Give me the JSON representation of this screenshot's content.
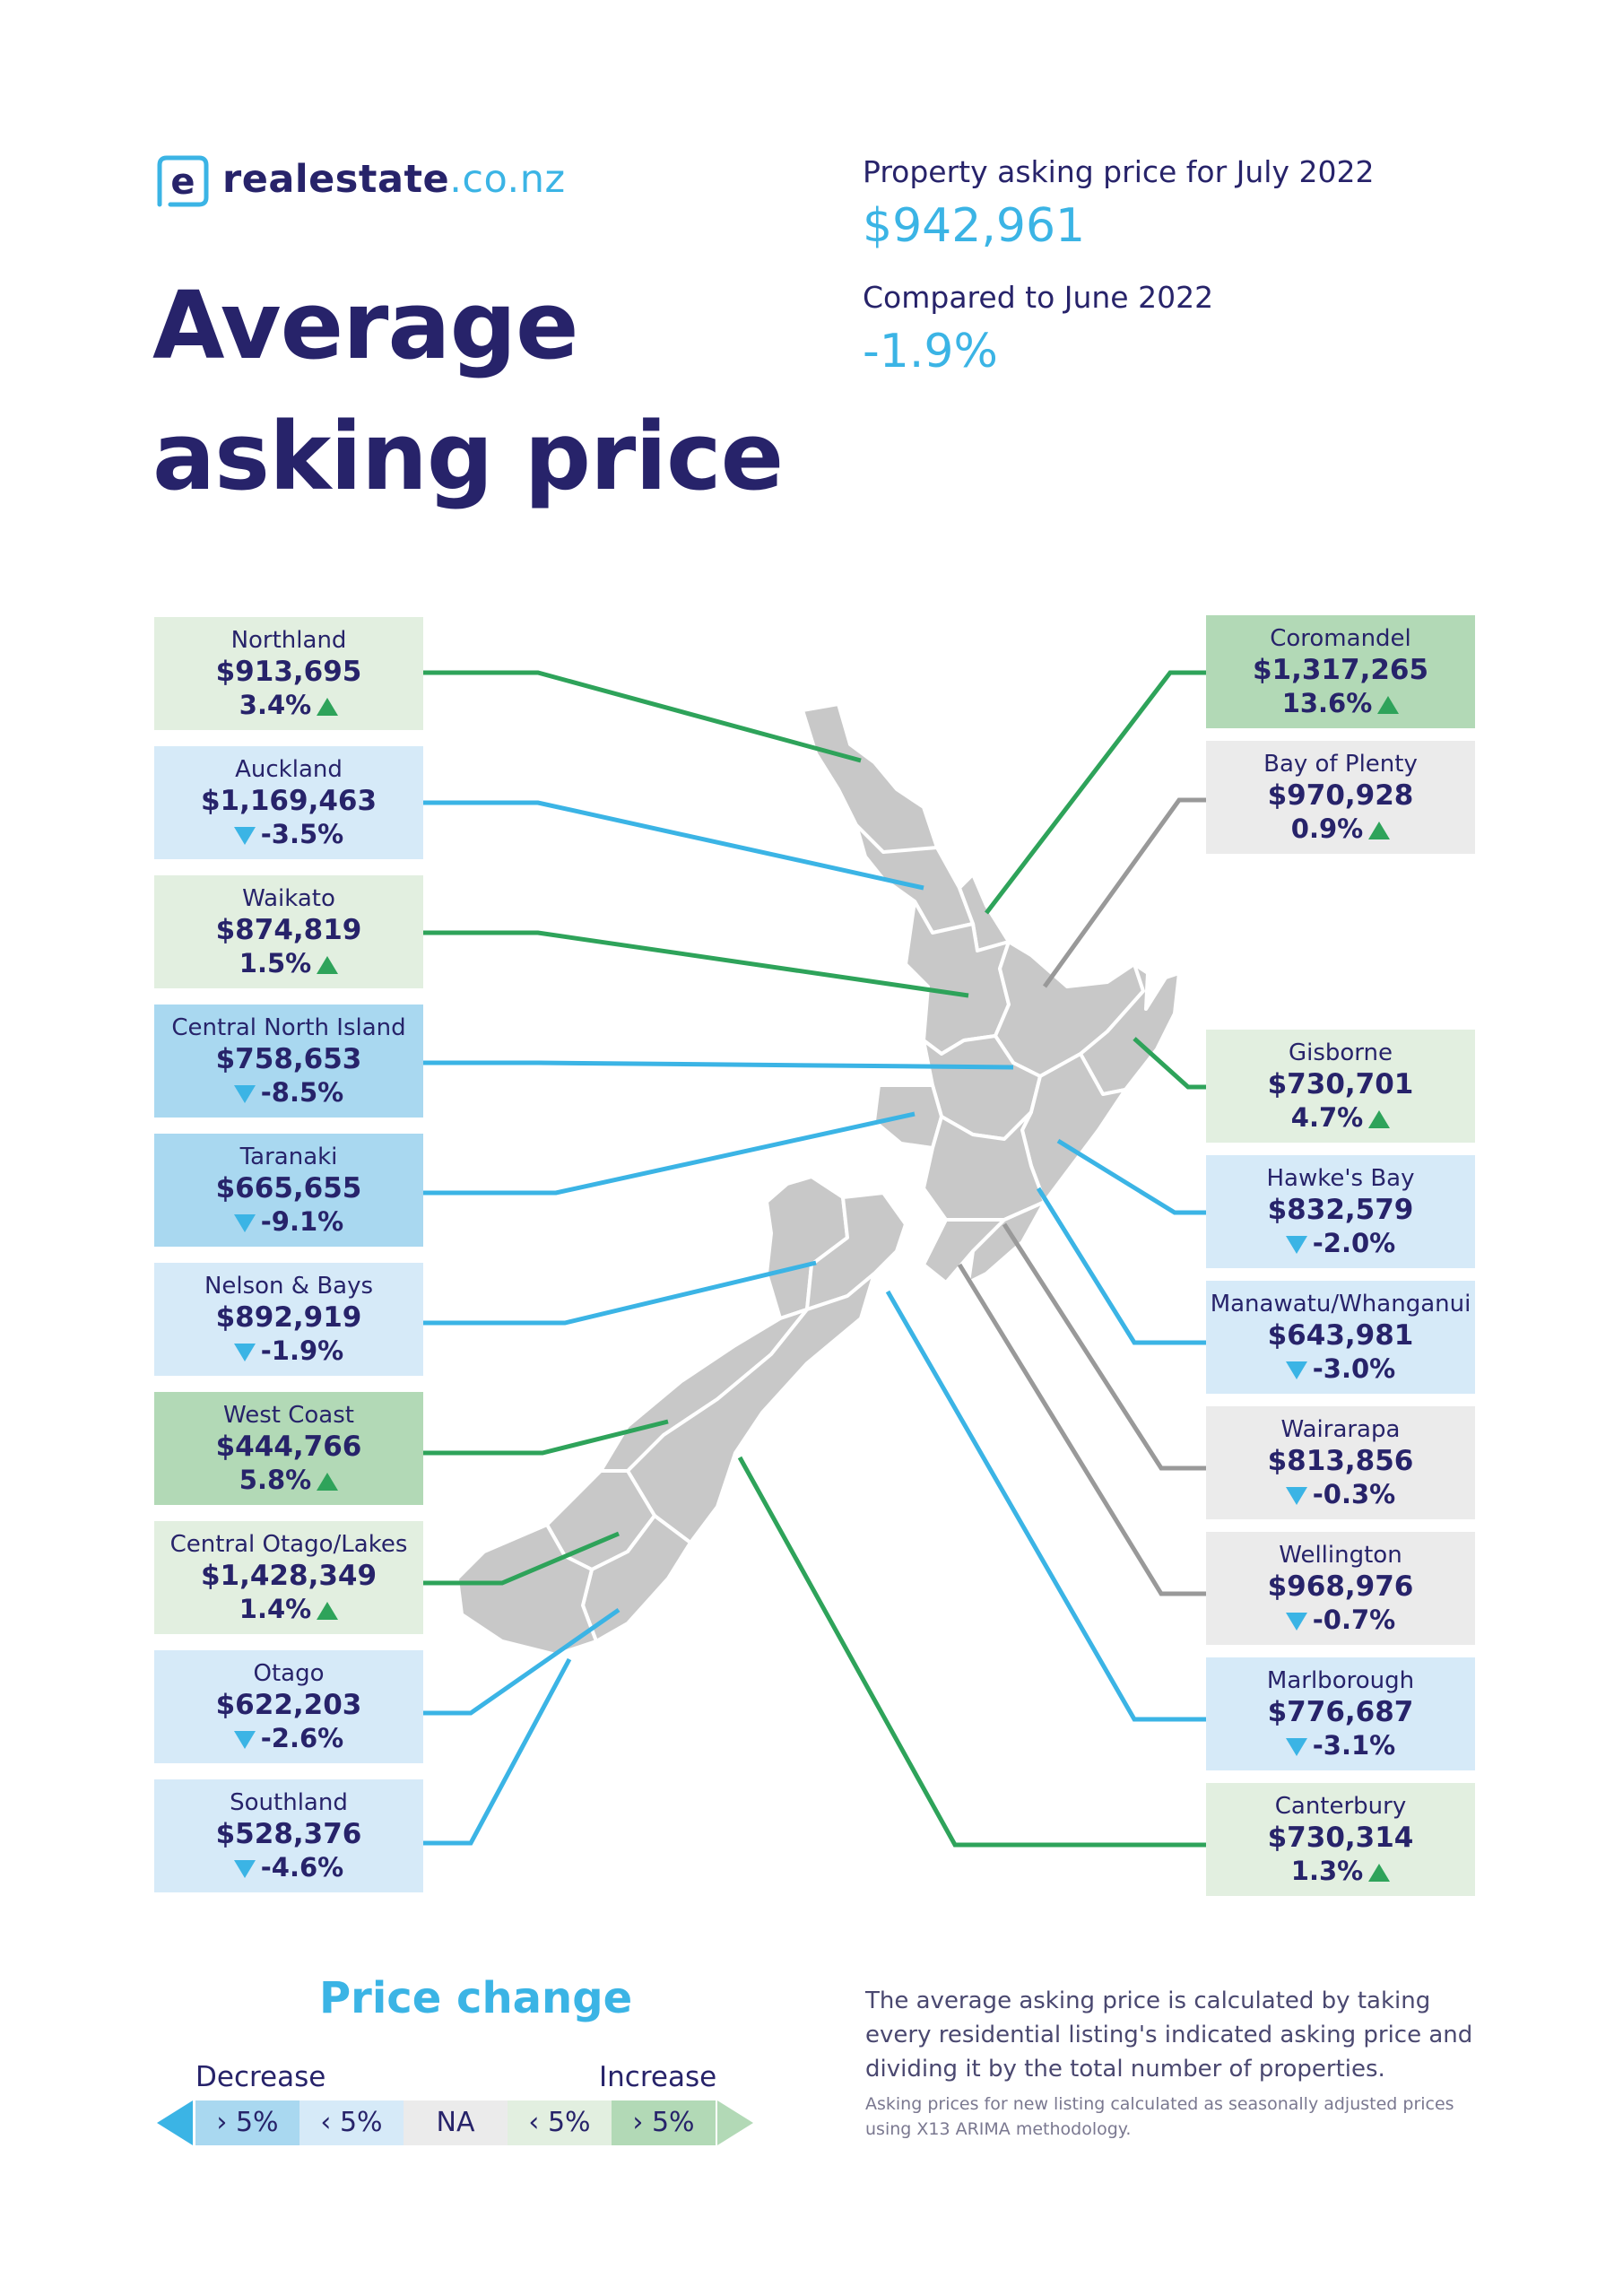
{
  "brand": {
    "name_part1": "realestate",
    "name_part2": ".co.nz",
    "logo_letter": "e"
  },
  "title": {
    "line1": "Average",
    "line2": "asking price"
  },
  "summary": {
    "asking_label": "Property asking price for July 2022",
    "asking_value": "$942,961",
    "compare_label": "Compared to June 2022",
    "compare_value": "-1.9%"
  },
  "colors": {
    "navy": "#27236a",
    "blue": "#3bb4e5",
    "green": "#2ea35a",
    "grey_line": "#999999",
    "increase_small": "#e2efe0",
    "increase_big": "#b2d9b6",
    "decrease_small": "#d6eaf8",
    "decrease_big": "#a9d8f0",
    "na": "#ebebeb",
    "map_fill": "#c8c8c8"
  },
  "regions_left": [
    {
      "name": "Northland",
      "price": "$913,695",
      "change": "3.4%",
      "direction": "up",
      "category": "increase_small"
    },
    {
      "name": "Auckland",
      "price": "$1,169,463",
      "change": "-3.5%",
      "direction": "down",
      "category": "decrease_small"
    },
    {
      "name": "Waikato",
      "price": "$874,819",
      "change": "1.5%",
      "direction": "up",
      "category": "increase_small"
    },
    {
      "name": "Central North Island",
      "price": "$758,653",
      "change": "-8.5%",
      "direction": "down",
      "category": "decrease_big"
    },
    {
      "name": "Taranaki",
      "price": "$665,655",
      "change": "-9.1%",
      "direction": "down",
      "category": "decrease_big"
    },
    {
      "name": "Nelson & Bays",
      "price": "$892,919",
      "change": "-1.9%",
      "direction": "down",
      "category": "decrease_small"
    },
    {
      "name": "West Coast",
      "price": "$444,766",
      "change": "5.8%",
      "direction": "up",
      "category": "increase_big"
    },
    {
      "name": "Central Otago/Lakes",
      "price": "$1,428,349",
      "change": "1.4%",
      "direction": "up",
      "category": "increase_small"
    },
    {
      "name": "Otago",
      "price": "$622,203",
      "change": "-2.6%",
      "direction": "down",
      "category": "decrease_small"
    },
    {
      "name": "Southland",
      "price": "$528,376",
      "change": "-4.6%",
      "direction": "down",
      "category": "decrease_small"
    }
  ],
  "regions_right": [
    {
      "name": "Coromandel",
      "price": "$1,317,265",
      "change": "13.6%",
      "direction": "up",
      "category": "increase_big"
    },
    {
      "name": "Bay of Plenty",
      "price": "$970,928",
      "change": "0.9%",
      "direction": "up",
      "category": "na"
    },
    {
      "name": "Gisborne",
      "price": "$730,701",
      "change": "4.7%",
      "direction": "up",
      "category": "increase_small"
    },
    {
      "name": "Hawke's Bay",
      "price": "$832,579",
      "change": "-2.0%",
      "direction": "down",
      "category": "decrease_small"
    },
    {
      "name": "Manawatu/Whanganui",
      "price": "$643,981",
      "change": "-3.0%",
      "direction": "down",
      "category": "decrease_small"
    },
    {
      "name": "Wairarapa",
      "price": "$813,856",
      "change": "-0.3%",
      "direction": "down",
      "category": "na"
    },
    {
      "name": "Wellington",
      "price": "$968,976",
      "change": "-0.7%",
      "direction": "down",
      "category": "na"
    },
    {
      "name": "Marlborough",
      "price": "$776,687",
      "change": "-3.1%",
      "direction": "down",
      "category": "decrease_small"
    },
    {
      "name": "Canterbury",
      "price": "$730,314",
      "change": "1.3%",
      "direction": "up",
      "category": "increase_small"
    }
  ],
  "legend": {
    "title": "Price change",
    "decrease_label": "Decrease",
    "increase_label": "Increase",
    "cells": [
      "› 5%",
      "‹ 5%",
      "NA",
      "‹ 5%",
      "› 5%"
    ]
  },
  "footnote": {
    "main": "The average asking price is calculated by taking every residential listing's indicated asking price and dividing it by the total number of properties.",
    "small": "Asking prices for new listing calculated as seasonally adjusted prices using X13 ARIMA methodology."
  }
}
